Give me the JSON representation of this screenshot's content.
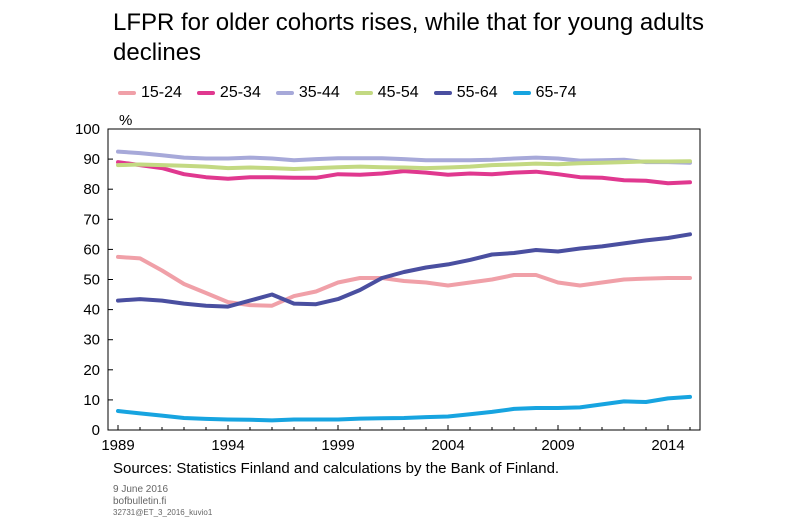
{
  "title": "LFPR for older cohorts rises, while that for young adults declines",
  "sources": "Sources: Statistics Finland and calculations by the Bank of Finland.",
  "footer": {
    "date": "9 June 2016",
    "site": "bofbulletin.fi",
    "code": "32731@ET_3_2016_kuvio1"
  },
  "chart_data": {
    "type": "line",
    "ylabel": "%",
    "xlabel": "",
    "ylim": [
      0,
      100
    ],
    "yticks": [
      0,
      10,
      20,
      30,
      40,
      50,
      60,
      70,
      80,
      90,
      100
    ],
    "xlim": [
      1989,
      2015
    ],
    "xticks": [
      1989,
      1994,
      1999,
      2004,
      2009,
      2014
    ],
    "grid": false,
    "legend": "top",
    "x": [
      1989,
      1990,
      1991,
      1992,
      1993,
      1994,
      1995,
      1996,
      1997,
      1998,
      1999,
      2000,
      2001,
      2002,
      2003,
      2004,
      2005,
      2006,
      2007,
      2008,
      2009,
      2010,
      2011,
      2012,
      2013,
      2014,
      2015
    ],
    "series": [
      {
        "name": "15-24",
        "color": "#F0A0A8",
        "values": [
          57.5,
          57,
          53,
          48.5,
          45.5,
          42.5,
          41.5,
          41.3,
          44.5,
          46,
          49,
          50.5,
          50.5,
          49.5,
          49,
          48,
          49,
          50,
          51.5,
          51.5,
          49,
          48,
          49,
          50,
          50.3,
          50.5,
          50.5
        ]
      },
      {
        "name": "25-34",
        "color": "#E0388F",
        "values": [
          89,
          88,
          87,
          85,
          84,
          83.5,
          84,
          84,
          83.8,
          83.8,
          85,
          84.8,
          85.2,
          86,
          85.5,
          84.8,
          85.2,
          85,
          85.5,
          85.8,
          85,
          84,
          83.8,
          83,
          82.8,
          82,
          82.3
        ]
      },
      {
        "name": "35-44",
        "color": "#A7A9D9",
        "values": [
          92.5,
          92,
          91.3,
          90.5,
          90.2,
          90.2,
          90.5,
          90.2,
          89.6,
          90,
          90.3,
          90.3,
          90.3,
          90,
          89.6,
          89.6,
          89.6,
          89.8,
          90.2,
          90.5,
          90.2,
          89.5,
          89.6,
          89.8,
          89,
          89,
          88.8
        ]
      },
      {
        "name": "45-54",
        "color": "#C3D982",
        "values": [
          88,
          88.2,
          88,
          87.8,
          87.5,
          87,
          87.2,
          87,
          86.7,
          87,
          87.3,
          87.5,
          87.3,
          87.2,
          87,
          87.2,
          87.5,
          88,
          88.2,
          88.5,
          88.3,
          88.6,
          88.8,
          89,
          89.2,
          89.2,
          89.3
        ]
      },
      {
        "name": "55-64",
        "color": "#4A4FA0",
        "values": [
          43,
          43.5,
          43,
          42,
          41.3,
          41,
          43,
          45,
          42,
          41.8,
          43.5,
          46.5,
          50.5,
          52.5,
          54,
          55,
          56.5,
          58.3,
          58.8,
          59.8,
          59.3,
          60.3,
          61,
          62,
          63,
          63.8,
          65
        ]
      },
      {
        "name": "65-74",
        "color": "#17A4E0",
        "values": [
          6.3,
          5.5,
          4.8,
          4,
          3.7,
          3.5,
          3.4,
          3.2,
          3.5,
          3.5,
          3.5,
          3.8,
          3.9,
          4,
          4.3,
          4.5,
          5.2,
          6,
          7,
          7.3,
          7.3,
          7.5,
          8.5,
          9.5,
          9.3,
          10.5,
          11
        ]
      }
    ]
  }
}
